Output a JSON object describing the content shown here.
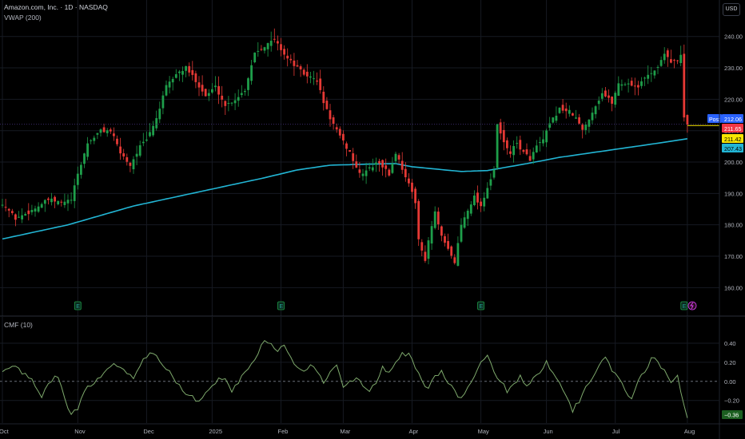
{
  "header": {
    "symbol_line": "Amazon.com, Inc. · 1D · NASDAQ",
    "indicator_line": "VWAP (200)",
    "currency_button": "USD"
  },
  "lower_pane": {
    "title": "CMF (10)"
  },
  "colors": {
    "background": "#000000",
    "up": "#26a69a",
    "up_body": "#1e9e4a",
    "down": "#e53935",
    "vwap": "#22b5d4",
    "cmf": "#7ea96c",
    "grid": "#161a22",
    "text": "#b2b5be",
    "post_badge": "#2962ff",
    "last_badge": "#f23645",
    "mid_badge": "#f7e600",
    "vwap_badge": "#22b5d4",
    "cmf_badge": "#1b5e20"
  },
  "chart_data": [
    {
      "type": "candlestick",
      "title": "Amazon.com, Inc. · 1D · NASDAQ",
      "ylim": [
        155,
        244
      ],
      "y_ticks": [
        160,
        170,
        180,
        190,
        200,
        210,
        220,
        230,
        240
      ],
      "y_tick_labels": [
        "160.00",
        "170.00",
        "180.00",
        "190.00",
        "200.00",
        "210.00",
        "220.00",
        "230.00",
        "240.00"
      ],
      "x_ticks": [
        {
          "label": "Oct",
          "i": 0
        },
        {
          "label": "Nov",
          "i": 23
        },
        {
          "label": "Dec",
          "i": 44
        },
        {
          "label": "2025",
          "i": 64
        },
        {
          "label": "Feb",
          "i": 85
        },
        {
          "label": "Mar",
          "i": 104
        },
        {
          "label": "Apr",
          "i": 125
        },
        {
          "label": "May",
          "i": 146
        },
        {
          "label": "Jun",
          "i": 166
        },
        {
          "label": "Jul",
          "i": 187
        },
        {
          "label": "Aug",
          "i": 209
        }
      ],
      "close_anchors": [
        [
          0,
          187
        ],
        [
          4,
          182
        ],
        [
          8,
          184
        ],
        [
          14,
          188
        ],
        [
          18,
          187
        ],
        [
          21,
          188
        ],
        [
          23,
          196
        ],
        [
          26,
          206
        ],
        [
          30,
          210
        ],
        [
          33,
          210
        ],
        [
          36,
          203
        ],
        [
          39,
          199
        ],
        [
          42,
          205
        ],
        [
          44,
          207
        ],
        [
          47,
          214
        ],
        [
          50,
          224
        ],
        [
          53,
          228
        ],
        [
          56,
          230
        ],
        [
          59,
          226
        ],
        [
          62,
          221
        ],
        [
          65,
          224
        ],
        [
          68,
          218
        ],
        [
          71,
          220
        ],
        [
          74,
          223
        ],
        [
          77,
          235
        ],
        [
          80,
          237
        ],
        [
          83,
          239
        ],
        [
          85,
          236
        ],
        [
          87,
          233
        ],
        [
          89,
          231
        ],
        [
          92,
          228
        ],
        [
          96,
          226
        ],
        [
          98,
          219
        ],
        [
          100,
          214
        ],
        [
          103,
          208
        ],
        [
          106,
          203
        ],
        [
          109,
          196
        ],
        [
          112,
          198
        ],
        [
          115,
          200
        ],
        [
          118,
          196
        ],
        [
          120,
          203
        ],
        [
          122,
          198
        ],
        [
          124,
          193
        ],
        [
          126,
          187
        ],
        [
          127,
          176
        ],
        [
          128,
          172
        ],
        [
          129,
          168
        ],
        [
          130,
          175
        ],
        [
          132,
          184
        ],
        [
          134,
          176
        ],
        [
          136,
          172
        ],
        [
          138,
          168
        ],
        [
          140,
          180
        ],
        [
          142,
          185
        ],
        [
          144,
          189
        ],
        [
          146,
          186
        ],
        [
          148,
          192
        ],
        [
          150,
          197
        ],
        [
          151,
          212
        ],
        [
          153,
          206
        ],
        [
          155,
          203
        ],
        [
          157,
          206
        ],
        [
          159,
          203
        ],
        [
          161,
          201
        ],
        [
          163,
          205
        ],
        [
          165,
          207
        ],
        [
          167,
          212
        ],
        [
          170,
          217
        ],
        [
          173,
          216
        ],
        [
          175,
          214
        ],
        [
          177,
          210
        ],
        [
          180,
          216
        ],
        [
          183,
          222
        ],
        [
          186,
          219
        ],
        [
          188,
          225
        ],
        [
          191,
          225
        ],
        [
          194,
          224
        ],
        [
          197,
          228
        ],
        [
          200,
          230
        ],
        [
          202,
          235
        ],
        [
          204,
          232
        ],
        [
          206,
          232
        ],
        [
          207,
          234
        ],
        [
          208,
          214
        ],
        [
          209,
          211.65
        ]
      ],
      "wick_pct": 0.014,
      "vwap_anchors": [
        [
          0,
          175.5
        ],
        [
          20,
          180
        ],
        [
          40,
          186
        ],
        [
          60,
          190.5
        ],
        [
          80,
          195
        ],
        [
          90,
          197.5
        ],
        [
          100,
          199
        ],
        [
          110,
          199.3
        ],
        [
          120,
          199.5
        ],
        [
          125,
          198.5
        ],
        [
          140,
          197
        ],
        [
          148,
          197.3
        ],
        [
          160,
          199.5
        ],
        [
          170,
          201.5
        ],
        [
          180,
          203
        ],
        [
          190,
          204.5
        ],
        [
          200,
          206
        ],
        [
          209,
          207.43
        ]
      ],
      "earnings_markers": [
        23,
        85,
        146,
        208
      ],
      "dividend_marker": 210,
      "price_labels": [
        {
          "name": "post-price",
          "label": "Post",
          "value": "212.06",
          "y": 212.06
        },
        {
          "name": "last-price",
          "label": "",
          "value": "211.65",
          "y": 211.65
        },
        {
          "name": "prev-close-price",
          "label": "",
          "value": "211.42",
          "y": 211.42
        },
        {
          "name": "vwap-price",
          "label": "",
          "value": "207.43",
          "y": 207.43
        }
      ]
    },
    {
      "type": "line",
      "title": "CMF (10)",
      "ylim": [
        -0.42,
        0.55
      ],
      "y_ticks": [
        0.4,
        0.2,
        0.0,
        -0.2
      ],
      "y_tick_labels": [
        "0.40",
        "0.20",
        "0.00",
        "−0.20"
      ],
      "zero_line": 0,
      "last_value": "−0.36",
      "anchors": [
        [
          0,
          0.12
        ],
        [
          3,
          0.18
        ],
        [
          6,
          0.08
        ],
        [
          9,
          0.02
        ],
        [
          12,
          -0.15
        ],
        [
          14,
          0.0
        ],
        [
          17,
          0.05
        ],
        [
          19,
          -0.2
        ],
        [
          21,
          -0.33
        ],
        [
          23,
          -0.28
        ],
        [
          25,
          -0.1
        ],
        [
          28,
          0.0
        ],
        [
          31,
          0.1
        ],
        [
          34,
          0.2
        ],
        [
          37,
          0.12
        ],
        [
          40,
          0.05
        ],
        [
          43,
          0.25
        ],
        [
          46,
          0.3
        ],
        [
          48,
          0.2
        ],
        [
          51,
          0.1
        ],
        [
          54,
          -0.05
        ],
        [
          57,
          -0.15
        ],
        [
          60,
          -0.2
        ],
        [
          62,
          -0.1
        ],
        [
          65,
          0.0
        ],
        [
          68,
          0.05
        ],
        [
          70,
          -0.1
        ],
        [
          72,
          0.0
        ],
        [
          75,
          0.15
        ],
        [
          78,
          0.3
        ],
        [
          80,
          0.45
        ],
        [
          82,
          0.38
        ],
        [
          84,
          0.3
        ],
        [
          86,
          0.38
        ],
        [
          88,
          0.25
        ],
        [
          90,
          0.15
        ],
        [
          92,
          0.1
        ],
        [
          94,
          0.18
        ],
        [
          96,
          0.1
        ],
        [
          98,
          0.0
        ],
        [
          100,
          0.1
        ],
        [
          102,
          0.15
        ],
        [
          104,
          -0.05
        ],
        [
          106,
          0.0
        ],
        [
          108,
          0.05
        ],
        [
          110,
          -0.05
        ],
        [
          112,
          -0.1
        ],
        [
          114,
          0.0
        ],
        [
          116,
          0.15
        ],
        [
          118,
          0.1
        ],
        [
          120,
          0.2
        ],
        [
          122,
          0.28
        ],
        [
          124,
          0.3
        ],
        [
          126,
          0.15
        ],
        [
          128,
          0.0
        ],
        [
          130,
          -0.08
        ],
        [
          132,
          0.05
        ],
        [
          134,
          0.1
        ],
        [
          136,
          0.0
        ],
        [
          138,
          -0.1
        ],
        [
          140,
          -0.18
        ],
        [
          142,
          -0.08
        ],
        [
          144,
          0.05
        ],
        [
          146,
          0.2
        ],
        [
          148,
          0.25
        ],
        [
          150,
          0.1
        ],
        [
          152,
          0.0
        ],
        [
          154,
          -0.1
        ],
        [
          156,
          -0.02
        ],
        [
          158,
          0.05
        ],
        [
          160,
          -0.05
        ],
        [
          162,
          0.05
        ],
        [
          164,
          0.1
        ],
        [
          166,
          0.2
        ],
        [
          168,
          0.1
        ],
        [
          170,
          0.0
        ],
        [
          172,
          -0.15
        ],
        [
          174,
          -0.3
        ],
        [
          176,
          -0.2
        ],
        [
          178,
          -0.05
        ],
        [
          180,
          0.05
        ],
        [
          182,
          0.15
        ],
        [
          184,
          0.25
        ],
        [
          186,
          0.12
        ],
        [
          188,
          0.05
        ],
        [
          190,
          -0.1
        ],
        [
          192,
          -0.2
        ],
        [
          194,
          0.0
        ],
        [
          196,
          0.1
        ],
        [
          198,
          0.25
        ],
        [
          200,
          0.2
        ],
        [
          202,
          0.1
        ],
        [
          204,
          0.0
        ],
        [
          206,
          0.05
        ],
        [
          207,
          -0.1
        ],
        [
          209,
          -0.36
        ]
      ]
    }
  ]
}
